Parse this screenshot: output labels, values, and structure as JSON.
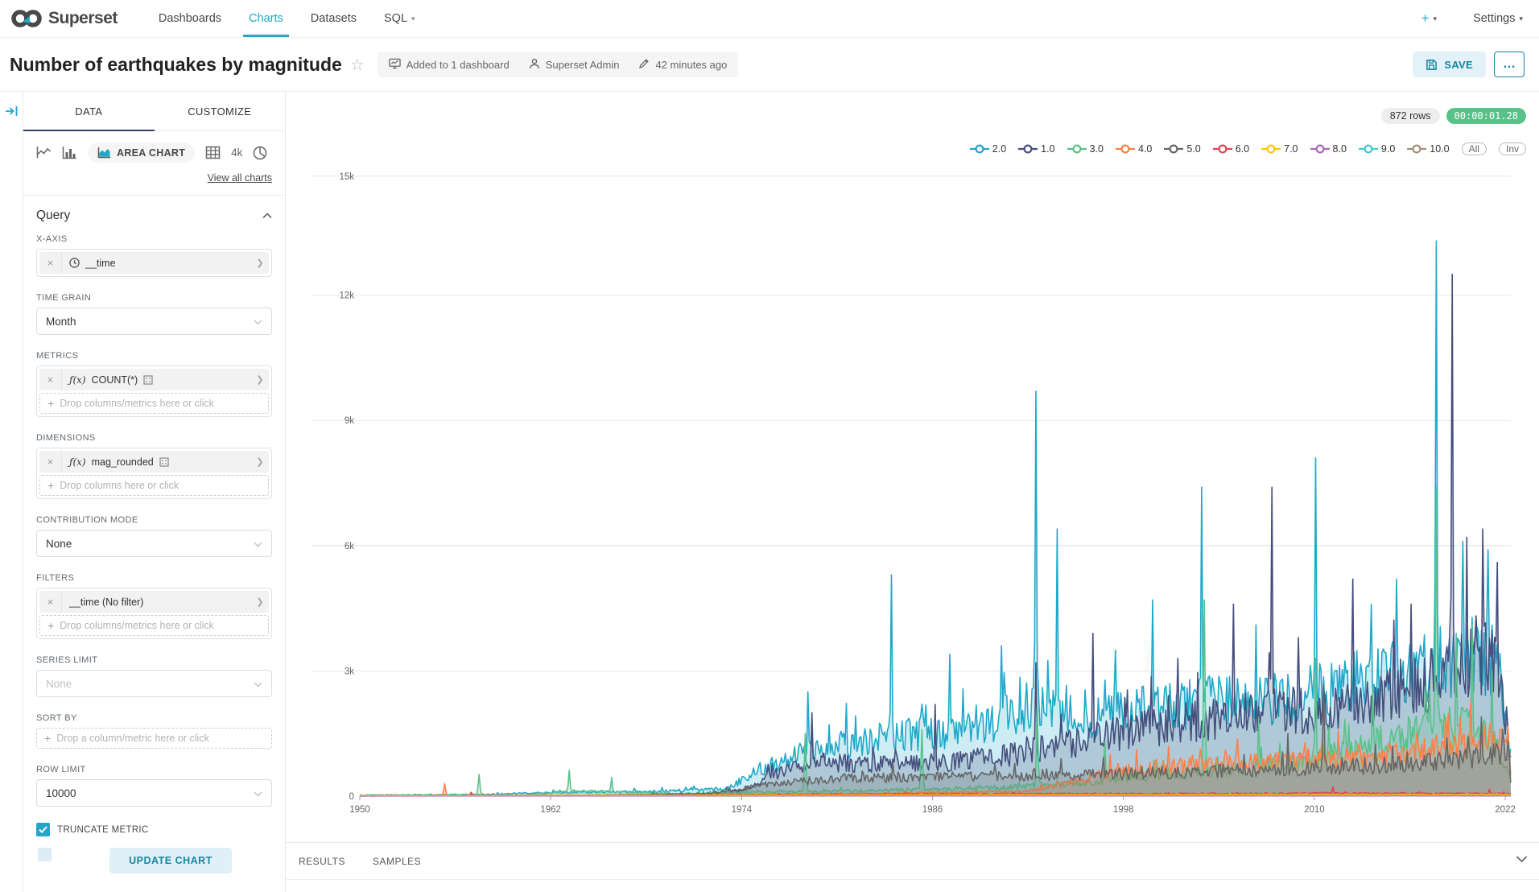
{
  "nav": {
    "brand": "Superset",
    "items": [
      {
        "label": "Dashboards",
        "active": false,
        "dropdown": false
      },
      {
        "label": "Charts",
        "active": true,
        "dropdown": false
      },
      {
        "label": "Datasets",
        "active": false,
        "dropdown": false
      },
      {
        "label": "SQL",
        "active": false,
        "dropdown": true
      }
    ],
    "plus_label": "+",
    "settings_label": "Settings"
  },
  "header": {
    "title": "Number of earthquakes by magnitude",
    "meta": [
      {
        "icon": "dashboard-icon",
        "label": "Added to 1 dashboard"
      },
      {
        "icon": "user-icon",
        "label": "Superset Admin"
      },
      {
        "icon": "pencil-icon",
        "label": "42 minutes ago"
      }
    ],
    "save_label": "SAVE",
    "more_label": "…"
  },
  "panel": {
    "tabs": [
      {
        "label": "DATA",
        "active": true
      },
      {
        "label": "CUSTOMIZE",
        "active": false
      }
    ],
    "viz": {
      "selected_label": "AREA CHART",
      "big_number_label": "4k",
      "view_all": "View all charts"
    },
    "query_title": "Query",
    "x_axis": {
      "label": "X-AXIS",
      "value": "__time"
    },
    "time_grain": {
      "label": "TIME GRAIN",
      "value": "Month"
    },
    "metrics": {
      "label": "METRICS",
      "fn": "ƒ(x)",
      "value": "COUNT(*)",
      "drop": "Drop columns/metrics here or click"
    },
    "dimensions": {
      "label": "DIMENSIONS",
      "fn": "ƒ(x)",
      "value": "mag_rounded",
      "drop": "Drop columns here or click"
    },
    "contribution": {
      "label": "CONTRIBUTION MODE",
      "value": "None"
    },
    "filters": {
      "label": "FILTERS",
      "value": "__time (No filter)",
      "drop": "Drop columns/metrics here or click"
    },
    "series_limit": {
      "label": "SERIES LIMIT",
      "placeholder": "None"
    },
    "sort_by": {
      "label": "SORT BY",
      "drop": "Drop a column/metric here or click"
    },
    "row_limit": {
      "label": "ROW LIMIT",
      "value": "10000"
    },
    "truncate": {
      "label": "TRUNCATE METRIC",
      "checked": true
    },
    "update_label": "UPDATE CHART"
  },
  "chart": {
    "rows_badge": "872 rows",
    "timer_badge": "00:00:01.28",
    "legend_extras": [
      "All",
      "Inv"
    ],
    "results_tabs": [
      "RESULTS",
      "SAMPLES"
    ]
  },
  "chart_data": {
    "type": "area",
    "title": "Number of earthquakes by magnitude",
    "grain": "Month",
    "rows": 872,
    "legend_position": "top-right",
    "grid": true,
    "x_axis": {
      "label": "__time",
      "start": 1950,
      "end": 2022.35,
      "ticks": [
        1950,
        1962,
        1974,
        1986,
        1998,
        2010,
        2022
      ]
    },
    "y_axis": {
      "tick_labels": [
        "0",
        "3k",
        "6k",
        "9k",
        "12k",
        "15k"
      ],
      "tick_values": [
        0,
        3000,
        6000,
        9000,
        12000,
        15000
      ],
      "max": 15000
    },
    "series": [
      {
        "name": "2.0",
        "color": "#1FA8C9",
        "trend": [
          [
            1950,
            25
          ],
          [
            1958,
            45
          ],
          [
            1963,
            95
          ],
          [
            1968,
            110
          ],
          [
            1973,
            170
          ],
          [
            1975,
            620
          ],
          [
            1977,
            950
          ],
          [
            1979,
            1150
          ],
          [
            1981,
            1280
          ],
          [
            1984,
            1500
          ],
          [
            1988,
            1520
          ],
          [
            1992,
            2100
          ],
          [
            1996,
            1900
          ],
          [
            2000,
            2100
          ],
          [
            2004,
            2300
          ],
          [
            2008,
            2300
          ],
          [
            2010,
            2500
          ],
          [
            2013,
            2800
          ],
          [
            2016,
            3000
          ],
          [
            2019,
            3300
          ],
          [
            2021.6,
            3200
          ],
          [
            2022.35,
            850
          ]
        ],
        "spikes": [
          [
            1978.2,
            2500
          ],
          [
            1983.4,
            5300
          ],
          [
            1987.1,
            3400
          ],
          [
            1990.3,
            3600
          ],
          [
            1992.5,
            9700
          ],
          [
            1993.8,
            6400
          ],
          [
            1997.5,
            3500
          ],
          [
            1999.8,
            4700
          ],
          [
            2002.9,
            7400
          ],
          [
            2006.3,
            4100
          ],
          [
            2010.1,
            8100
          ],
          [
            2013.6,
            4600
          ],
          [
            2015.2,
            5200
          ],
          [
            2017.7,
            13300
          ],
          [
            2019.3,
            6100
          ],
          [
            2020.9,
            5900
          ]
        ]
      },
      {
        "name": "1.0",
        "color": "#454E7C",
        "trend": [
          [
            1950,
            5
          ],
          [
            1970,
            15
          ],
          [
            1974,
            130
          ],
          [
            1976,
            520
          ],
          [
            1979,
            820
          ],
          [
            1983,
            760
          ],
          [
            1987,
            820
          ],
          [
            1991,
            1000
          ],
          [
            1995,
            1300
          ],
          [
            1999,
            1600
          ],
          [
            2003,
            1800
          ],
          [
            2007,
            2000
          ],
          [
            2011,
            2100
          ],
          [
            2014,
            2300
          ],
          [
            2017,
            2700
          ],
          [
            2019,
            3100
          ],
          [
            2021.4,
            3300
          ],
          [
            2022.35,
            1100
          ]
        ],
        "spikes": [
          [
            1978.4,
            2000
          ],
          [
            1986.2,
            2200
          ],
          [
            1992.5,
            3200
          ],
          [
            1996.1,
            3900
          ],
          [
            2001.4,
            3300
          ],
          [
            2004.9,
            4600
          ],
          [
            2007.3,
            7400
          ],
          [
            2009.0,
            3800
          ],
          [
            2012.4,
            5200
          ],
          [
            2016.1,
            4600
          ],
          [
            2018.7,
            12500
          ],
          [
            2019.6,
            6200
          ],
          [
            2020.6,
            6400
          ],
          [
            2021.5,
            5600
          ]
        ],
        "fill": false
      },
      {
        "name": "3.0",
        "color": "#5AC189",
        "trend": [
          [
            1950,
            8
          ],
          [
            1960,
            20
          ],
          [
            1964,
            120
          ],
          [
            1970,
            60
          ],
          [
            1980,
            120
          ],
          [
            1990,
            200
          ],
          [
            1996,
            350
          ],
          [
            2000,
            500
          ],
          [
            2005,
            650
          ],
          [
            2009,
            800
          ],
          [
            2013,
            1200
          ],
          [
            2016,
            1500
          ],
          [
            2019,
            1700
          ],
          [
            2021,
            1500
          ],
          [
            2022.35,
            400
          ]
        ],
        "spikes": [
          [
            1957.5,
            520
          ],
          [
            1963.2,
            620
          ],
          [
            1965.8,
            450
          ],
          [
            1978.0,
            1500
          ],
          [
            1985.3,
            1600
          ],
          [
            1992.6,
            2100
          ],
          [
            1996.8,
            1300
          ],
          [
            2003.1,
            4700
          ],
          [
            2006.5,
            1900
          ],
          [
            2010.1,
            3300
          ],
          [
            2013.7,
            2600
          ],
          [
            2017.7,
            7400
          ],
          [
            2018.9,
            3900
          ],
          [
            2019.9,
            4100
          ],
          [
            2021.2,
            3000
          ]
        ]
      },
      {
        "name": "4.0",
        "color": "#FF7F44",
        "trend": [
          [
            1950,
            4
          ],
          [
            1962,
            14
          ],
          [
            1974,
            40
          ],
          [
            1985,
            70
          ],
          [
            1992,
            120
          ],
          [
            1995,
            360
          ],
          [
            1998,
            650
          ],
          [
            2002,
            760
          ],
          [
            2006,
            800
          ],
          [
            2010,
            860
          ],
          [
            2014,
            950
          ],
          [
            2018,
            1200
          ],
          [
            2021,
            1400
          ],
          [
            2022.2,
            1500
          ],
          [
            2022.35,
            320
          ]
        ],
        "spikes": [
          [
            1955.3,
            300
          ],
          [
            1997.2,
            1000
          ],
          [
            2000.8,
            1200
          ],
          [
            2004.4,
            1100
          ],
          [
            2009.6,
            1150
          ],
          [
            2012.8,
            1250
          ],
          [
            2016.4,
            1500
          ],
          [
            2019.2,
            1900
          ],
          [
            2020.7,
            1700
          ]
        ]
      },
      {
        "name": "5.0",
        "color": "#666666",
        "trend": [
          [
            1950,
            10
          ],
          [
            1965,
            25
          ],
          [
            1972,
            60
          ],
          [
            1976,
            300
          ],
          [
            1980,
            420
          ],
          [
            1990,
            480
          ],
          [
            2000,
            560
          ],
          [
            2008,
            650
          ],
          [
            2012,
            700
          ],
          [
            2016,
            780
          ],
          [
            2020,
            900
          ],
          [
            2022.2,
            1100
          ],
          [
            2022.35,
            260
          ]
        ],
        "spikes": [
          [
            1983.5,
            800
          ],
          [
            1994.1,
            900
          ],
          [
            2005.6,
            1000
          ],
          [
            2008.3,
            1500
          ],
          [
            2010.6,
            2700
          ],
          [
            2014.9,
            1200
          ],
          [
            2018.3,
            1400
          ],
          [
            2020.5,
            1900
          ],
          [
            2021.8,
            1600
          ]
        ]
      },
      {
        "name": "6.0",
        "color": "#E04355",
        "trend": [
          [
            1950,
            12
          ],
          [
            1960,
            18
          ],
          [
            1970,
            25
          ],
          [
            1980,
            45
          ],
          [
            1990,
            55
          ],
          [
            2000,
            60
          ],
          [
            2010,
            70
          ],
          [
            2022.35,
            60
          ]
        ],
        "spikes": [
          [
            1957.0,
            95
          ],
          [
            2011.2,
            220
          ],
          [
            2021.0,
            160
          ]
        ]
      },
      {
        "name": "7.0",
        "color": "#FCC700",
        "trend": [
          [
            1950,
            18
          ],
          [
            1970,
            25
          ],
          [
            1990,
            35
          ],
          [
            2010,
            42
          ],
          [
            2022.35,
            40
          ]
        ],
        "spikes": []
      },
      {
        "name": "8.0",
        "color": "#A868B7",
        "trend": [
          [
            1950,
            2
          ],
          [
            2000,
            6
          ],
          [
            2022.35,
            10
          ]
        ],
        "spikes": [
          [
            1996.0,
            26
          ],
          [
            2008.0,
            30
          ],
          [
            2016.0,
            36
          ]
        ]
      },
      {
        "name": "9.0",
        "color": "#3CCCCB",
        "trend": [
          [
            1950,
            0
          ],
          [
            2022.35,
            0
          ]
        ],
        "spikes": []
      },
      {
        "name": "10.0",
        "color": "#A38F79",
        "trend": [
          [
            1950,
            0
          ],
          [
            2022.35,
            0
          ]
        ],
        "spikes": []
      }
    ]
  }
}
